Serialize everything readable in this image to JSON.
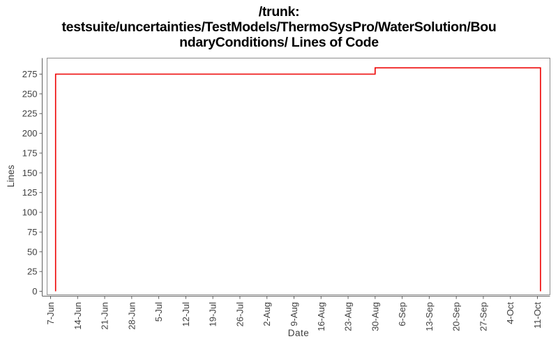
{
  "title": {
    "line1": "/trunk:",
    "line2": "testsuite/uncertainties/TestModels/ThermoSysPro/WaterSolution/Bou",
    "line3": "ndaryConditions/ Lines of Code",
    "full": "/trunk: testsuite/uncertainties/TestModels/ThermoSysPro/WaterSolution/BoundaryConditions/ Lines of Code"
  },
  "colors": {
    "line": "#ee0000",
    "frame": "#8c8c8c",
    "axis": "#5e5e5e",
    "tick_text": "#404040",
    "title_text": "#000000"
  },
  "chart_data": {
    "type": "line",
    "style": "step",
    "title": "/trunk: testsuite/uncertainties/TestModels/ThermoSysPro/WaterSolution/BoundaryConditions/ Lines of Code",
    "xlabel": "Date",
    "ylabel": "Lines",
    "grid": false,
    "legend": "none",
    "x_tick_labels": [
      "7-Jun",
      "14-Jun",
      "21-Jun",
      "28-Jun",
      "5-Jul",
      "12-Jul",
      "19-Jul",
      "26-Jul",
      "2-Aug",
      "9-Aug",
      "16-Aug",
      "23-Aug",
      "30-Aug",
      "6-Sep",
      "13-Sep",
      "20-Sep",
      "27-Sep",
      "4-Oct",
      "11-Oct"
    ],
    "x_tick_interval_days": 7,
    "x_day_zero_label": "7-Jun",
    "y_ticks": [
      0,
      25,
      50,
      75,
      100,
      125,
      150,
      175,
      200,
      225,
      250,
      275
    ],
    "ylim": [
      0,
      295
    ],
    "series": [
      {
        "name": "Lines of Code",
        "points": [
          {
            "day": 1.3,
            "date": "8-Jun",
            "lines": 0
          },
          {
            "day": 1.3,
            "date": "8-Jun",
            "lines": 275
          },
          {
            "day": 84,
            "date": "30-Aug",
            "lines": 275
          },
          {
            "day": 84,
            "date": "30-Aug",
            "lines": 283
          },
          {
            "day": 126.8,
            "date": "12-Oct",
            "lines": 283
          },
          {
            "day": 126.8,
            "date": "12-Oct",
            "lines": 0
          }
        ]
      }
    ]
  }
}
